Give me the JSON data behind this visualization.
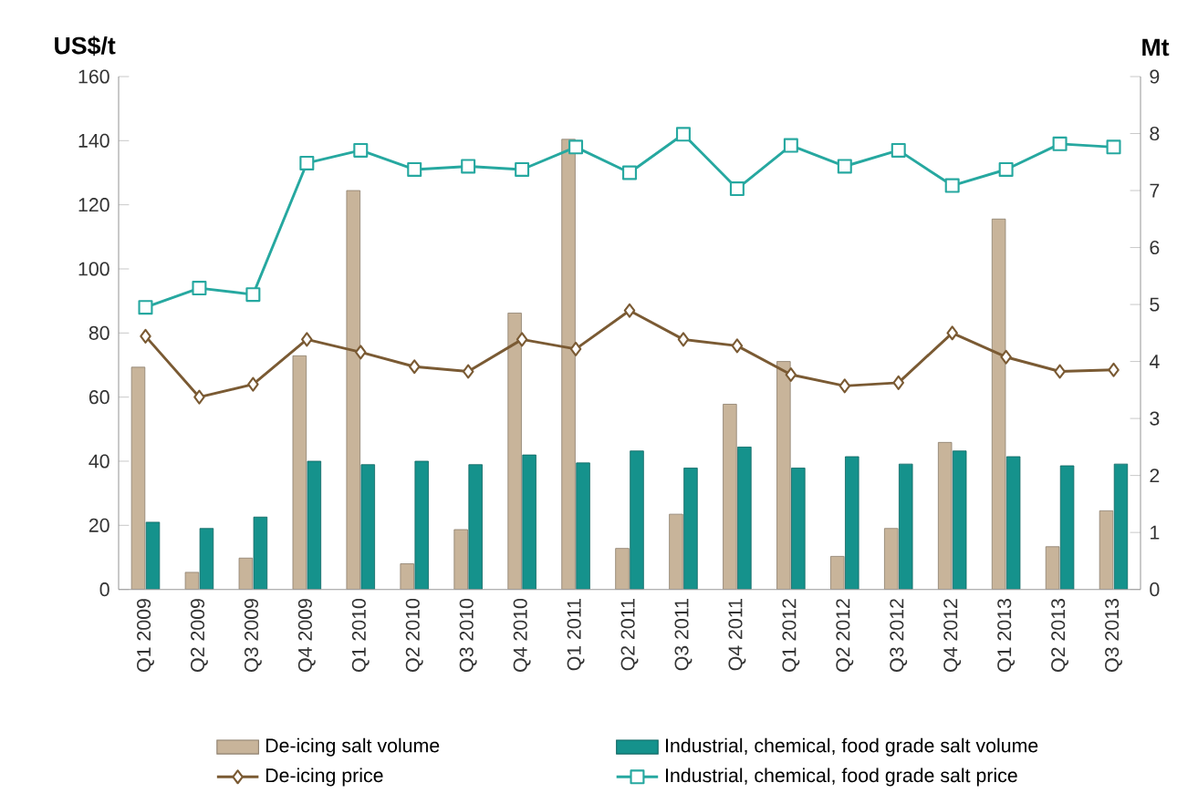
{
  "chart_data": {
    "type": "bar",
    "ylabel": "US$/t",
    "y2label": "Mt",
    "categories": [
      "Q1 2009",
      "Q2 2009",
      "Q3 2009",
      "Q4 2009",
      "Q1 2010",
      "Q2 2010",
      "Q3 2010",
      "Q4 2010",
      "Q1 2011",
      "Q2 2011",
      "Q3 2011",
      "Q4 2011",
      "Q1 2012",
      "Q2 2012",
      "Q3 2012",
      "Q4 2012",
      "Q1 2013",
      "Q2 2013",
      "Q3 2013"
    ],
    "series": [
      {
        "name": "De-icing salt volume",
        "axis": "y2",
        "color": "#c8b49a",
        "values": [
          3.9,
          0.3,
          0.55,
          4.1,
          7.0,
          0.45,
          1.05,
          4.85,
          7.9,
          0.72,
          1.32,
          3.25,
          4.0,
          0.58,
          1.07,
          2.58,
          6.5,
          0.75,
          1.38
        ]
      },
      {
        "name": "Industrial, chemical, food grade salt volume",
        "axis": "y2",
        "color": "#15928c",
        "values": [
          1.18,
          1.07,
          1.27,
          2.25,
          2.19,
          2.25,
          2.19,
          2.36,
          2.22,
          2.43,
          2.13,
          2.5,
          2.13,
          2.33,
          2.2,
          2.43,
          2.33,
          2.17,
          2.2
        ]
      },
      {
        "name": "De-icing price",
        "type": "line",
        "axis": "y",
        "marker": "diamond",
        "color": "#7a5a33",
        "values": [
          79,
          60,
          64,
          78,
          74,
          69.5,
          68,
          78,
          75,
          87,
          78,
          76,
          67,
          63.5,
          64.5,
          80,
          72.5,
          68,
          68.5
        ]
      },
      {
        "name": "Industrial, chemical, food grade salt price",
        "type": "line",
        "axis": "y",
        "marker": "square",
        "color": "#26a8a0",
        "values": [
          88,
          94,
          92,
          133,
          137,
          131,
          132,
          131,
          138,
          130,
          142,
          125,
          138.5,
          132,
          137,
          126,
          131,
          139,
          138
        ]
      }
    ],
    "ylim": [
      0,
      160
    ],
    "yticks": [
      0,
      20,
      40,
      60,
      80,
      100,
      120,
      140,
      160
    ],
    "y2lim": [
      0,
      9
    ],
    "y2ticks": [
      0,
      1,
      2,
      3,
      4,
      5,
      6,
      7,
      8,
      9
    ],
    "legend": "bottom"
  }
}
